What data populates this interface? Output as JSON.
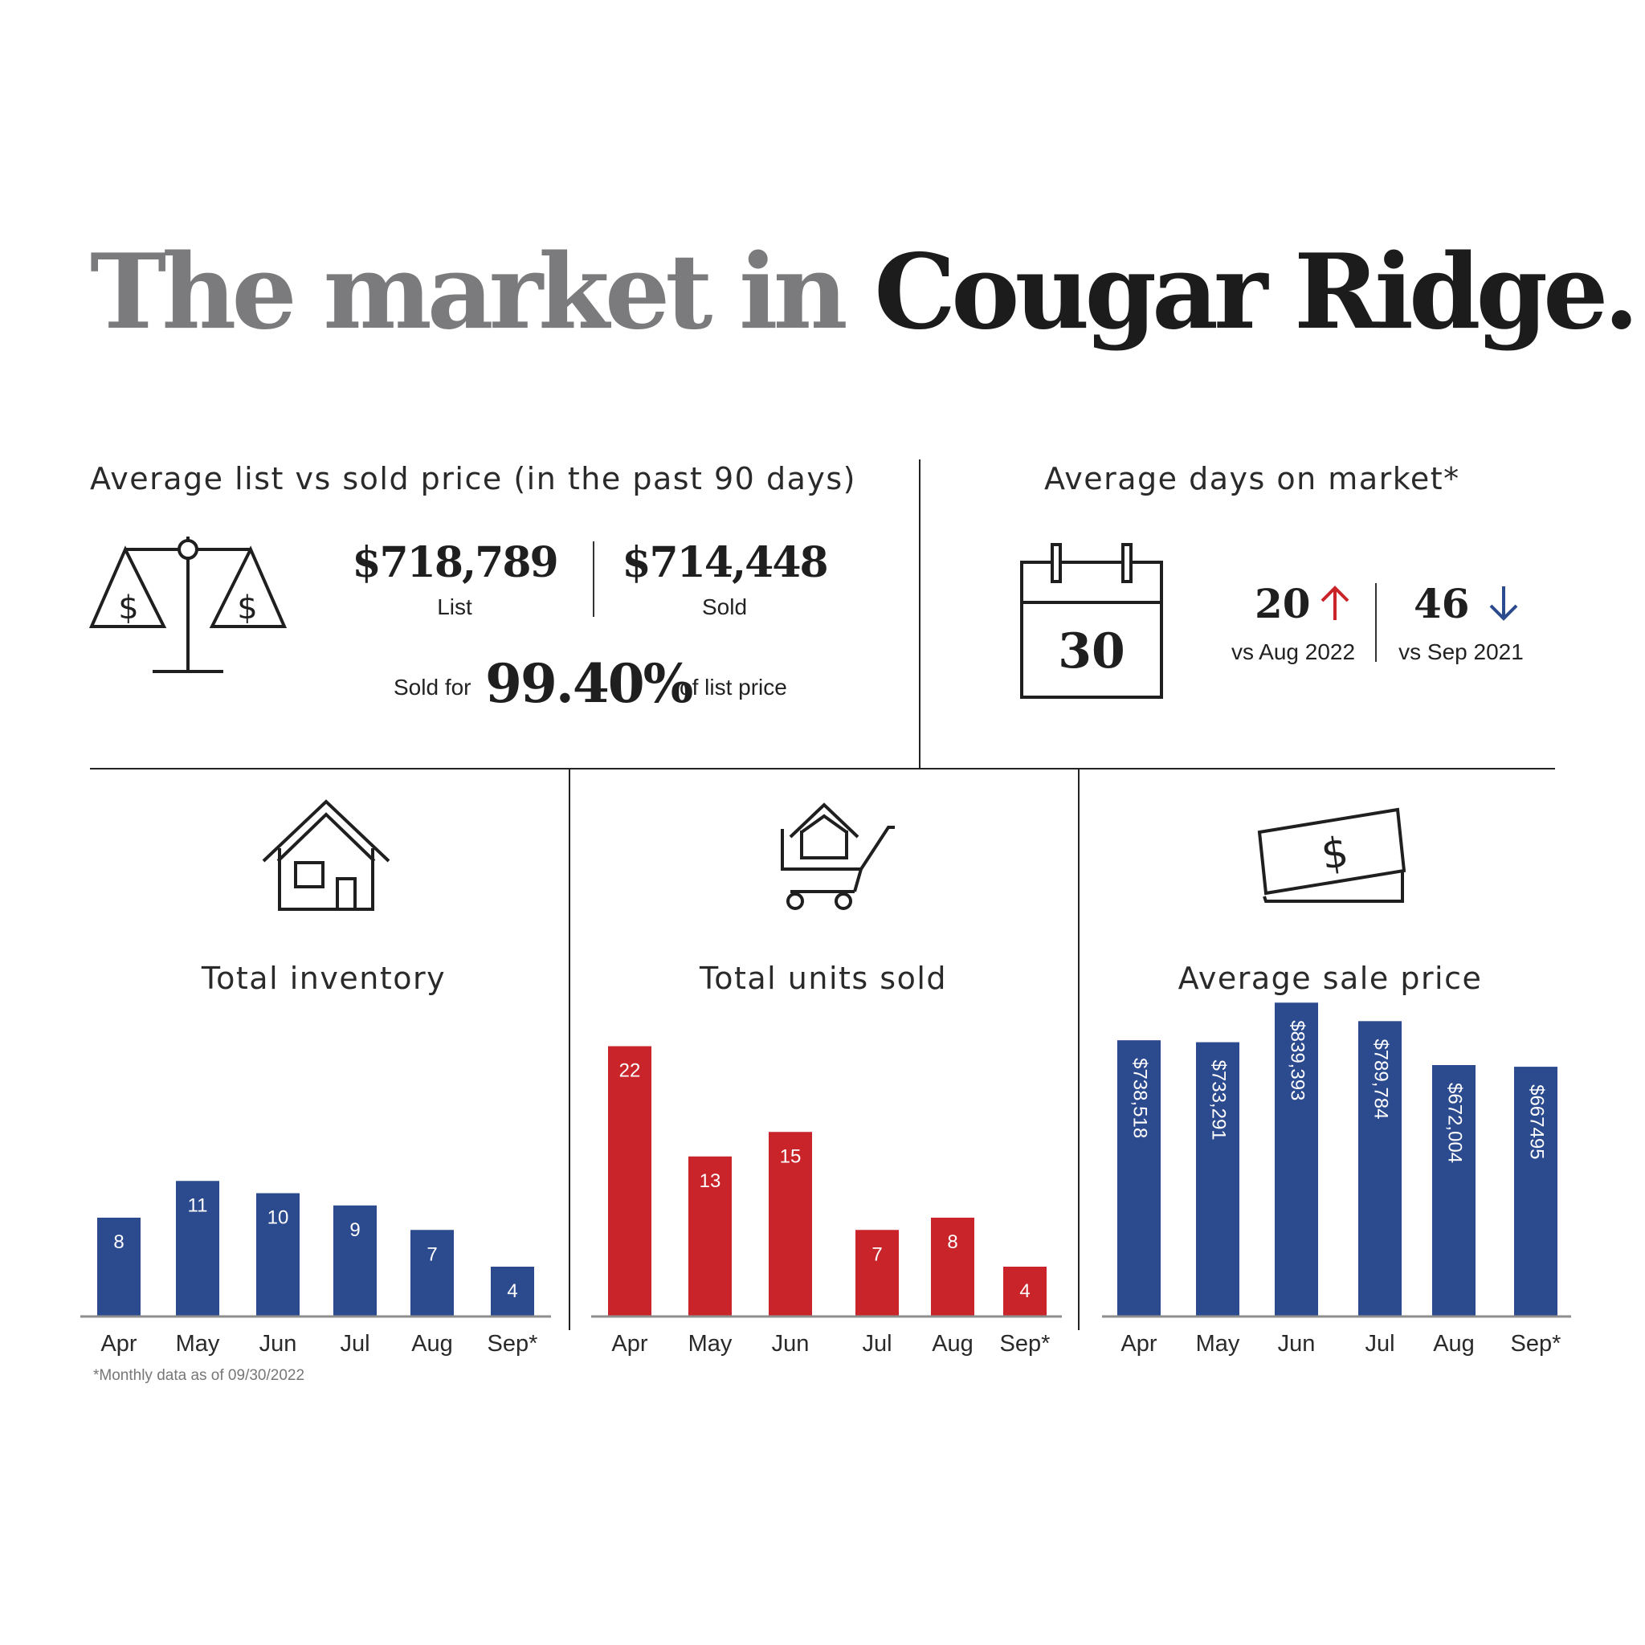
{
  "title": {
    "part1": "The market in",
    "part2": "Cougar Ridge."
  },
  "list_vs_sold": {
    "heading": "Average list vs sold price (in the past 90 days)",
    "list_value": "$718,789",
    "list_label": "List",
    "sold_value": "$714,448",
    "sold_label": "Sold",
    "sold_for_prefix": "Sold for",
    "sold_for_pct": "99.40%",
    "sold_for_suffix": "of list price",
    "icon": "scale-icon"
  },
  "days_on_market": {
    "heading": "Average days on market*",
    "calendar_value": "30",
    "compare1_value": "20",
    "compare1_label": "vs Aug 2022",
    "compare1_direction": "up",
    "compare1_color": "#c9242a",
    "compare2_value": "46",
    "compare2_label": "vs Sep 2021",
    "compare2_direction": "down",
    "compare2_color": "#2c4a8e",
    "icon": "calendar-icon"
  },
  "colors": {
    "blue": "#2c4a8e",
    "red": "#c9242a"
  },
  "footnote": "*Monthly data as of 09/30/2022",
  "chart_data": [
    {
      "type": "bar",
      "title": "Total inventory",
      "icon": "house-icon",
      "categories": [
        "Apr",
        "May",
        "Jun",
        "Jul",
        "Aug",
        "Sep*"
      ],
      "values": [
        8,
        11,
        10,
        9,
        7,
        4
      ],
      "labels": [
        "8",
        "11",
        "10",
        "9",
        "7",
        "4"
      ],
      "color": "#2c4a8e",
      "ylim": [
        0,
        24
      ]
    },
    {
      "type": "bar",
      "title": "Total units sold",
      "icon": "shopping-cart-house-icon",
      "categories": [
        "Apr",
        "May",
        "Jun",
        "Jul",
        "Aug",
        "Sep*"
      ],
      "values": [
        22,
        13,
        15,
        7,
        8,
        4
      ],
      "labels": [
        "22",
        "13",
        "15",
        "7",
        "8",
        "4"
      ],
      "color": "#c9242a",
      "ylim": [
        0,
        24
      ]
    },
    {
      "type": "bar",
      "title": "Average sale price",
      "icon": "dollar-bill-icon",
      "categories": [
        "Apr",
        "May",
        "Jun",
        "Jul",
        "Aug",
        "Sep*"
      ],
      "values": [
        738518,
        733291,
        839393,
        789784,
        672004,
        667495
      ],
      "labels": [
        "$738,518",
        "$733,291",
        "$839,393",
        "$789,784",
        "$672,004",
        "$667495"
      ],
      "color": "#2c4a8e",
      "ylim": [
        0,
        840000
      ]
    }
  ]
}
